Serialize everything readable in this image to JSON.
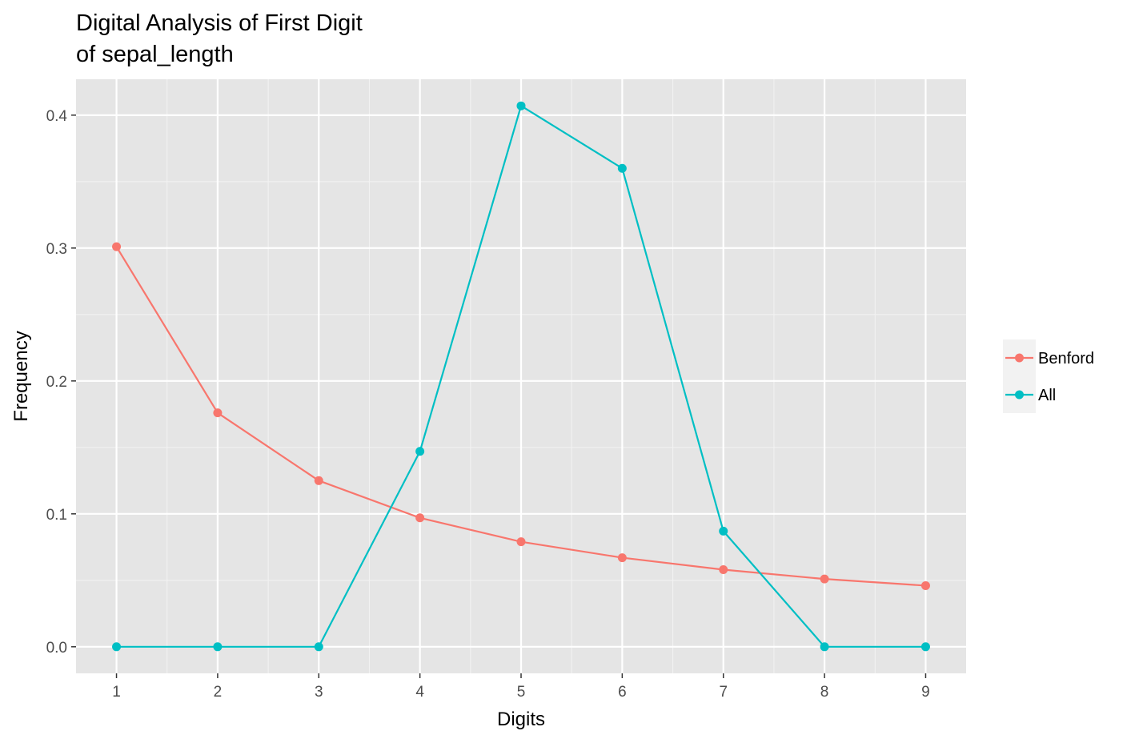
{
  "chart_data": {
    "type": "line",
    "title_lines": [
      "Digital Analysis of First Digit",
      "of sepal_length"
    ],
    "xlabel": "Digits",
    "ylabel": "Frequency",
    "x": [
      1,
      2,
      3,
      4,
      5,
      6,
      7,
      8,
      9
    ],
    "x_tick_labels": [
      "1",
      "2",
      "3",
      "4",
      "5",
      "6",
      "7",
      "8",
      "9"
    ],
    "xlim": [
      0.6,
      9.4
    ],
    "ylim": [
      -0.02,
      0.427
    ],
    "y_ticks": [
      0.0,
      0.1,
      0.2,
      0.3,
      0.4
    ],
    "y_tick_labels": [
      "0.0",
      "0.1",
      "0.2",
      "0.3",
      "0.4"
    ],
    "grid": true,
    "legend_position": "right",
    "series": [
      {
        "name": "Benford",
        "color": "#F8766D",
        "values": [
          0.301,
          0.176,
          0.125,
          0.097,
          0.079,
          0.067,
          0.058,
          0.051,
          0.046
        ]
      },
      {
        "name": "All",
        "color": "#00BFC4",
        "values": [
          0.0,
          0.0,
          0.0,
          0.147,
          0.407,
          0.36,
          0.087,
          0.0,
          0.0
        ]
      }
    ],
    "colors": {
      "panel_background": "#E5E5E5",
      "grid_major": "#FFFFFF",
      "grid_minor": "#F2F2F2",
      "legend_key_background": "#F2F2F2"
    }
  }
}
